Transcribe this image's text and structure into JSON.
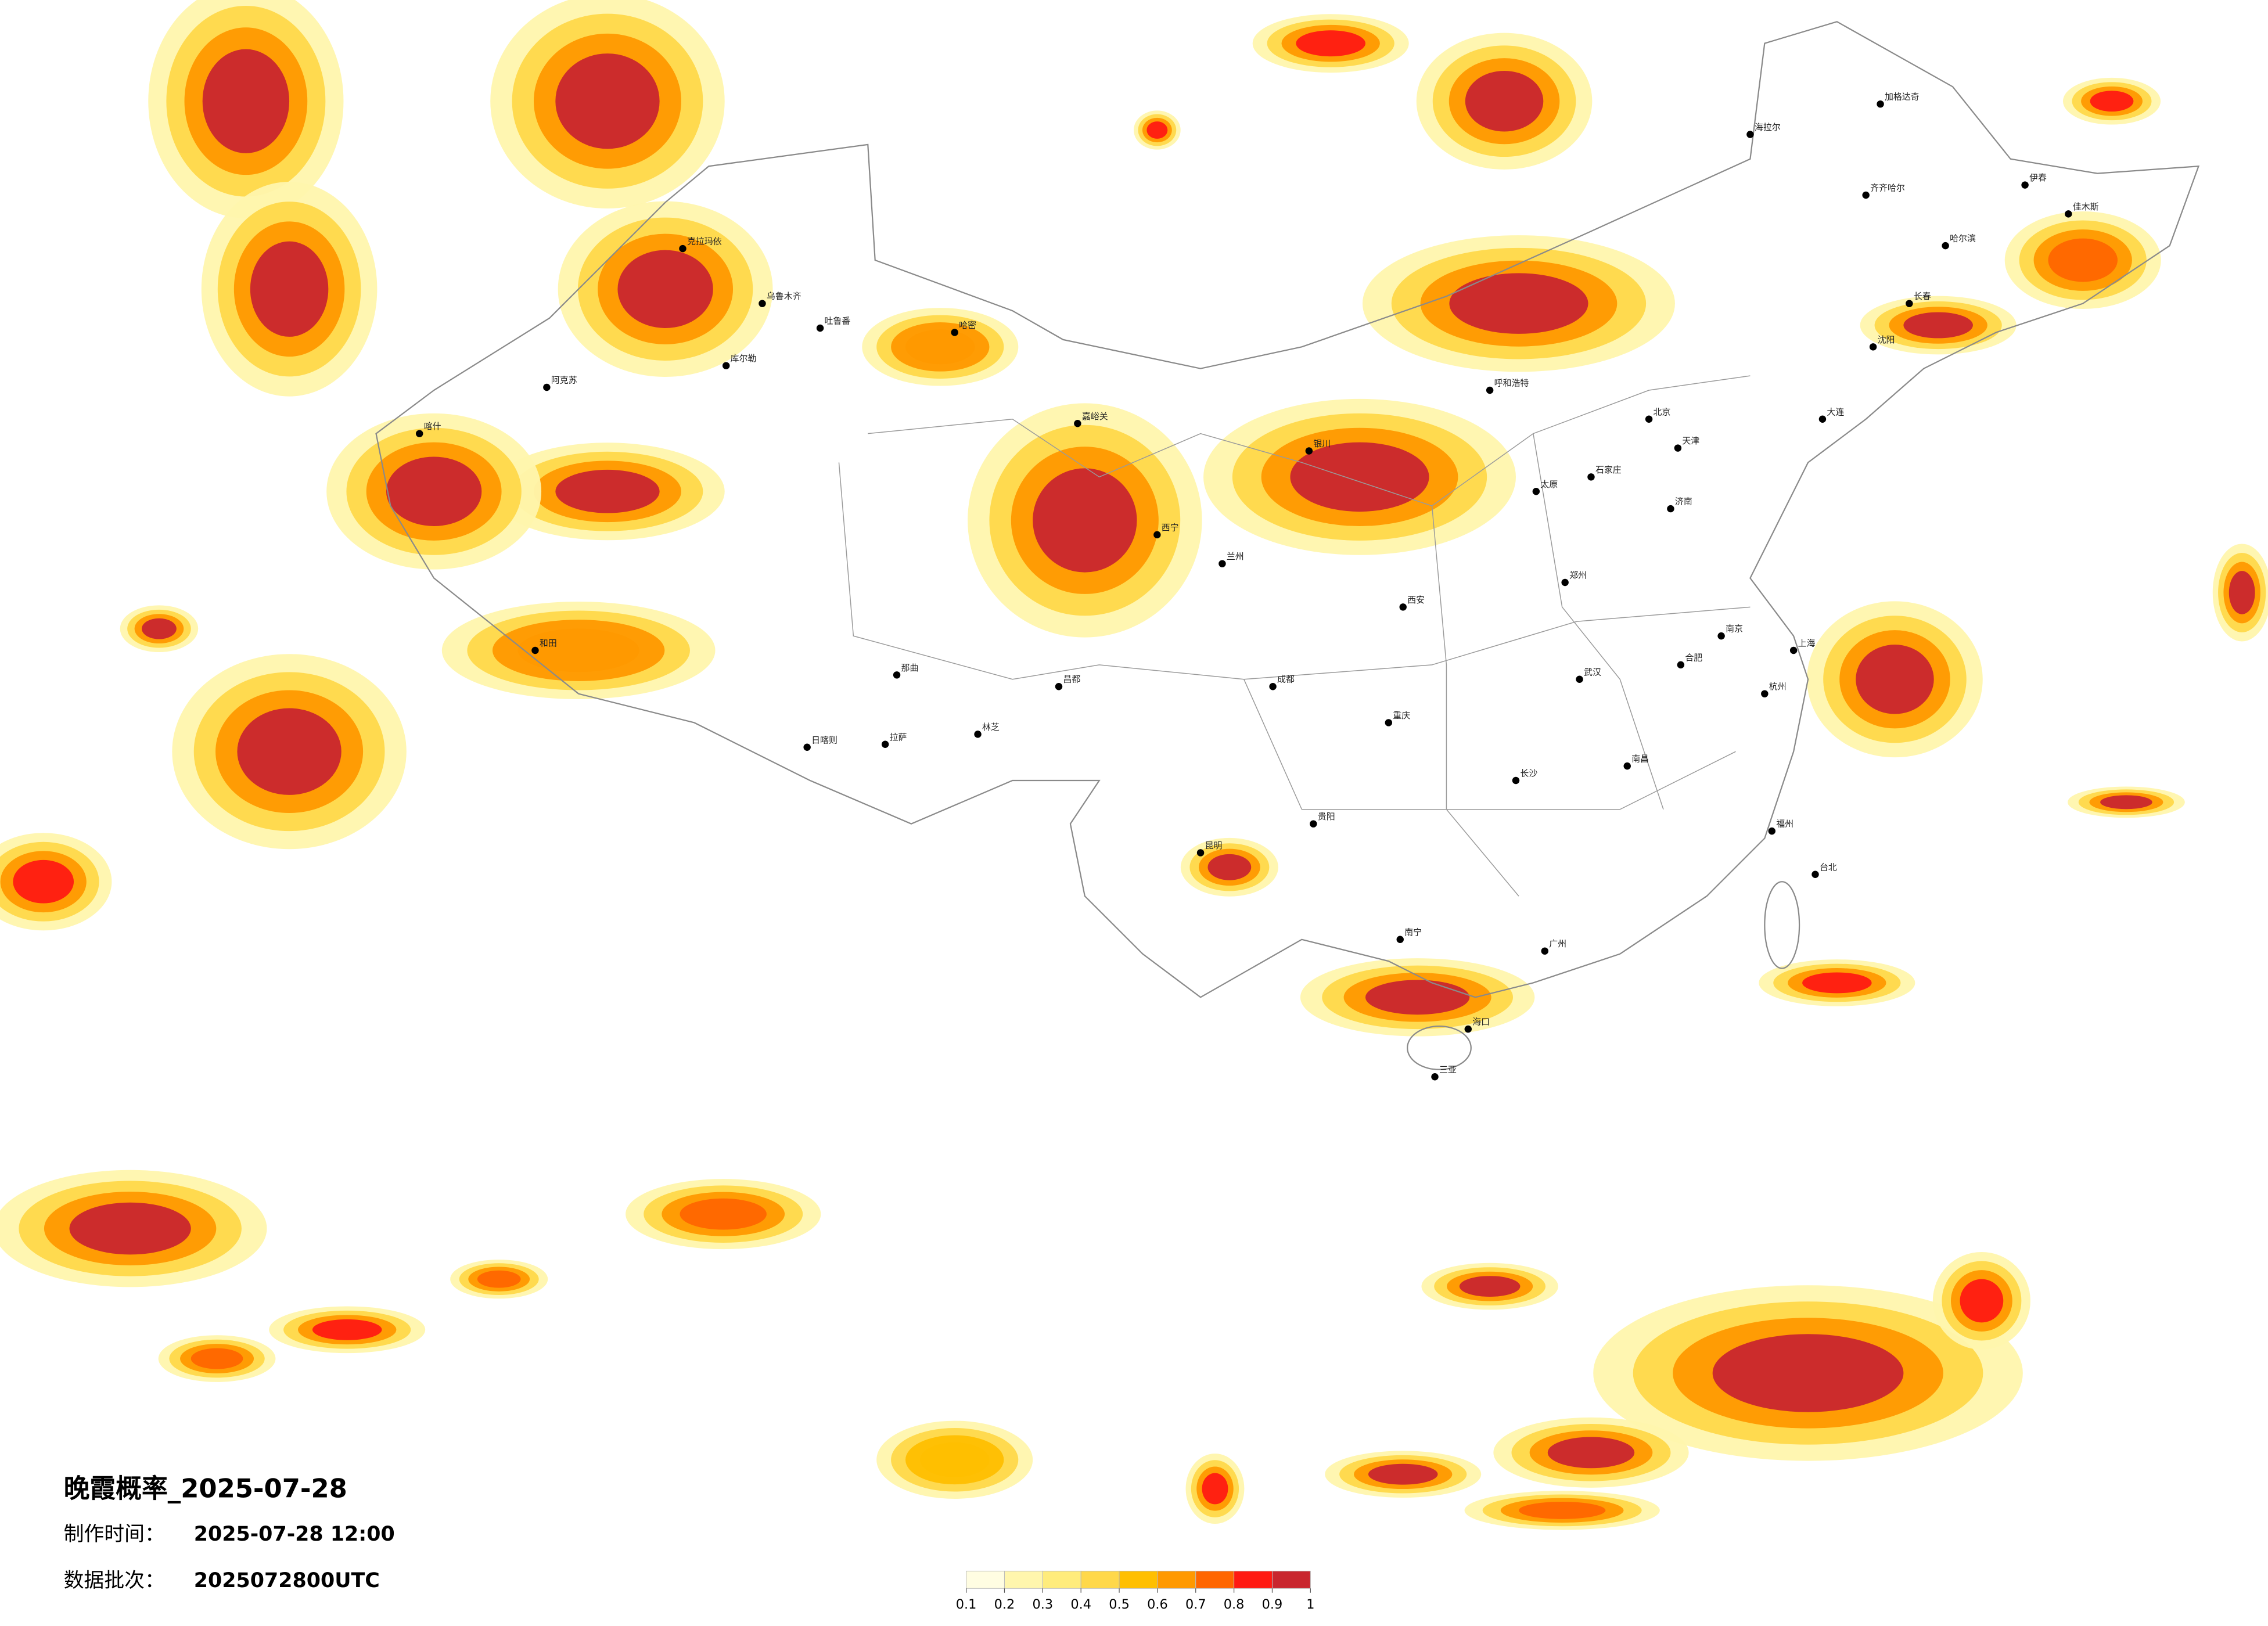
{
  "title": "晚霞概率_2025-07-28",
  "info": [
    {
      "label": "制作时间：",
      "value": "2025-07-28 12:00"
    },
    {
      "label": "数据批次：",
      "value": "2025072800UTC"
    }
  ],
  "legend": {
    "ticks": [
      0.1,
      0.2,
      0.3,
      0.4,
      0.5,
      0.6,
      0.7,
      0.8,
      0.9,
      1
    ],
    "colors": [
      "#fffde2",
      "#fff6ad",
      "#ffec7c",
      "#ffd84a",
      "#ffbf00",
      "#ff9900",
      "#ff6600",
      "#ff1a12",
      "#c9262e"
    ]
  },
  "cities": [
    "克拉玛依",
    "乌鲁木齐",
    "吐鲁番",
    "库尔勒",
    "阿克苏",
    "喀什",
    "和田",
    "哈密",
    "嘉峪关",
    "西宁",
    "拉萨",
    "日喀则",
    "林芝",
    "那曲",
    "昌都",
    "兰州",
    "银川",
    "呼和浩特",
    "北京",
    "天津",
    "石家庄",
    "太原",
    "西安",
    "郑州",
    "济南",
    "成都",
    "重庆",
    "贵阳",
    "昆明",
    "南宁",
    "长沙",
    "武汉",
    "南昌",
    "合肥",
    "南京",
    "上海",
    "杭州",
    "福州",
    "广州",
    "海口",
    "三亚",
    "台北",
    "哈尔滨",
    "长春",
    "沈阳",
    "大连",
    "齐齐哈尔",
    "海拉尔",
    "加格达奇",
    "伊春",
    "佳木斯"
  ]
}
